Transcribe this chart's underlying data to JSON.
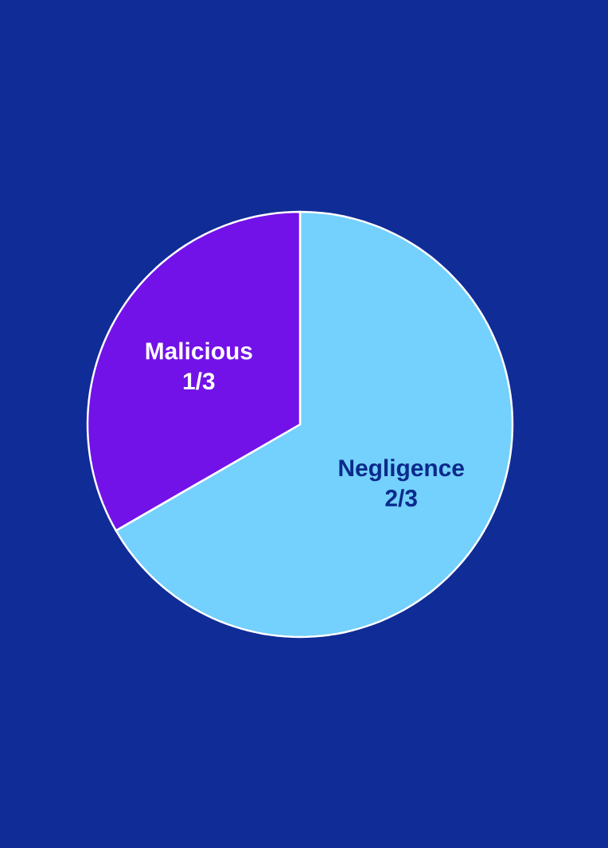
{
  "chart_data": {
    "type": "pie",
    "categories": [
      "Negligence",
      "Malicious"
    ],
    "values": [
      0.6667,
      0.3333
    ],
    "value_labels": [
      "2/3",
      "1/3"
    ],
    "colors": [
      "#74d0fc",
      "#7212e8"
    ]
  }
}
